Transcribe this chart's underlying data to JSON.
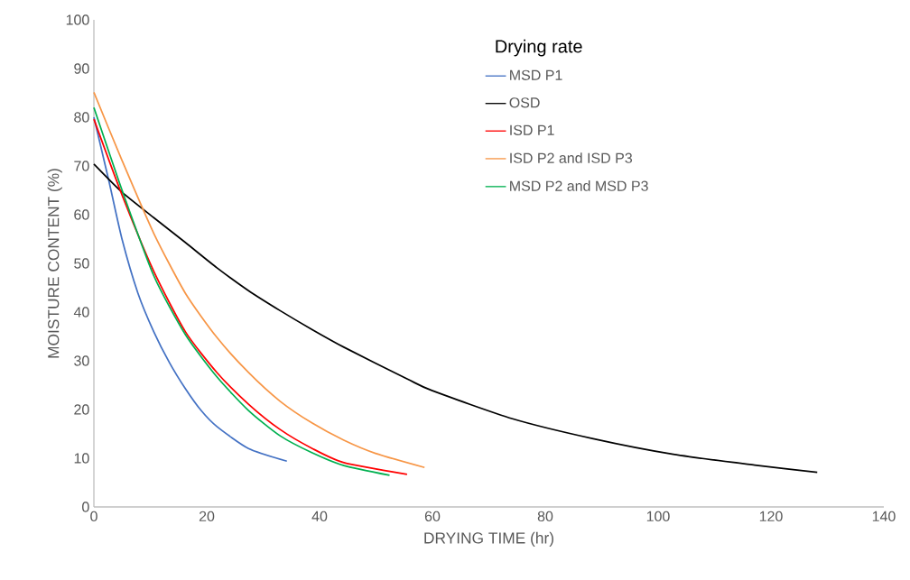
{
  "chart_data": {
    "type": "line",
    "xlabel": "DRYING TIME (hr)",
    "ylabel": "MOISTURE CONTENT (%)",
    "legend_title": "Drying rate",
    "legend": "top right",
    "line_style": "solid",
    "xlim": [
      0,
      140
    ],
    "ylim": [
      0,
      100
    ],
    "xticks": [
      0,
      20,
      40,
      60,
      80,
      100,
      120,
      140
    ],
    "yticks": [
      0,
      10,
      20,
      30,
      40,
      50,
      60,
      70,
      80,
      90,
      100
    ],
    "series": [
      {
        "name": "MSD P1",
        "color": "#4472c4",
        "x": [
          0,
          2.7,
          5.0,
          7.8,
          10.6,
          13.4,
          16.2,
          19,
          21.8,
          27.4,
          34.2
        ],
        "values": [
          80,
          66.7,
          54.9,
          43.9,
          36,
          29.6,
          24.3,
          19.8,
          16.5,
          12,
          9.4
        ]
      },
      {
        "name": "OSD",
        "color": "#000000",
        "x": [
          0,
          5,
          10.6,
          16.2,
          21.8,
          27.4,
          33,
          38.7,
          44.3,
          55.5,
          59.9,
          74.2,
          88.5,
          102.7,
          117.1,
          128.2
        ],
        "values": [
          70.4,
          64.6,
          59.4,
          54.3,
          49.1,
          44.4,
          40.3,
          36.4,
          32.8,
          26.3,
          23.9,
          18.1,
          14,
          10.8,
          8.6,
          7.1
        ]
      },
      {
        "name": "ISD P1",
        "color": "#ff0000",
        "x": [
          0,
          5,
          10.6,
          16.2,
          21.8,
          27.4,
          33,
          38.7,
          44.3,
          55.5
        ],
        "values": [
          79.6,
          64,
          48.4,
          36,
          27.6,
          21.1,
          15.9,
          12,
          9.1,
          6.7
        ]
      },
      {
        "name": "ISD P2 and ISD P3",
        "color": "#f79646",
        "x": [
          0,
          5,
          10.6,
          16.2,
          21.8,
          27.4,
          33,
          38.7,
          44.3,
          49.9,
          58.6
        ],
        "values": [
          85.1,
          71.1,
          56.2,
          43.9,
          34.8,
          27.6,
          21.7,
          17.2,
          13.7,
          11,
          8.1
        ]
      },
      {
        "name": "MSD P2 and MSD P3",
        "color": "#00b050",
        "x": [
          0,
          5,
          10.6,
          16.2,
          21.8,
          27.4,
          33,
          38.7,
          44.3,
          52.4
        ],
        "values": [
          82,
          65,
          47.5,
          35.4,
          26.7,
          19.8,
          14.6,
          11.1,
          8.5,
          6.5
        ]
      }
    ]
  }
}
